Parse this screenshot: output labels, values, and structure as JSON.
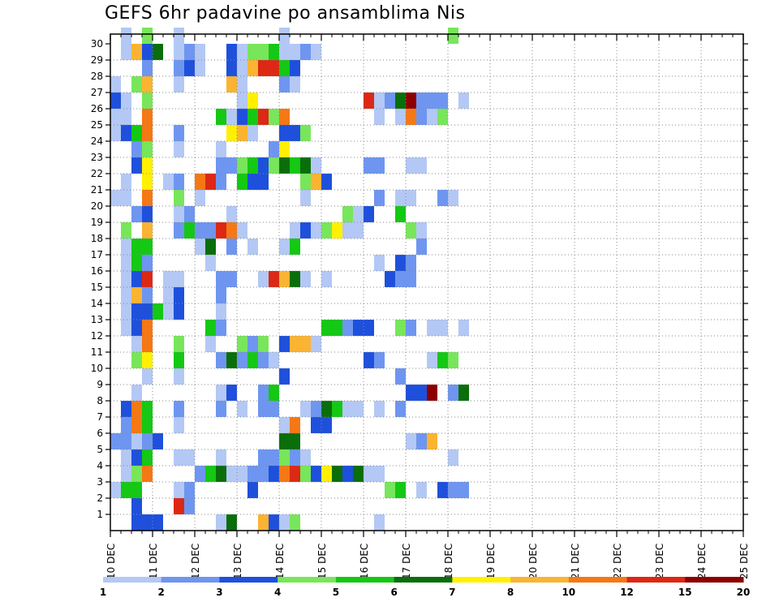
{
  "chart_data": {
    "type": "heatmap",
    "title": "GEFS 6hr padavine po ansamblima Nis",
    "xlabel": "",
    "ylabel": "",
    "x_tick_labels": [
      "10 DEC",
      "11 DEC",
      "12 DEC",
      "13 DEC",
      "14 DEC",
      "15 DEC",
      "16 DEC",
      "17 DEC",
      "18 DEC",
      "19 DEC",
      "20 DEC",
      "21 DEC",
      "22 DEC",
      "23 DEC",
      "24 DEC",
      "25 DEC"
    ],
    "y_tick_labels": [
      "1",
      "2",
      "3",
      "4",
      "5",
      "6",
      "7",
      "8",
      "9",
      "10",
      "11",
      "12",
      "13",
      "14",
      "15",
      "16",
      "17",
      "18",
      "19",
      "20",
      "21",
      "22",
      "23",
      "24",
      "25",
      "26",
      "27",
      "28",
      "29",
      "30"
    ],
    "xlim": [
      0,
      60
    ],
    "ylim": [
      0,
      30
    ],
    "grid": true,
    "time_step_hours": 6,
    "colorbar": {
      "labels": [
        "1",
        "2",
        "3",
        "4",
        "5",
        "6",
        "7",
        "8",
        "10",
        "12",
        "15",
        "20"
      ],
      "colors": [
        "#b4c8f5",
        "#6e96f0",
        "#1e50dc",
        "#78e65a",
        "#14c814",
        "#0a6e0a",
        "#fff000",
        "#fab432",
        "#f57814",
        "#dc2814",
        "#8c0000"
      ]
    },
    "cells": [
      [
        1,
        30,
        0
      ],
      [
        3,
        30,
        3
      ],
      [
        6,
        30,
        0
      ],
      [
        16,
        30,
        0
      ],
      [
        32,
        30,
        3
      ],
      [
        1,
        29,
        0
      ],
      [
        2,
        29,
        7
      ],
      [
        3,
        29,
        2
      ],
      [
        4,
        29,
        5
      ],
      [
        6,
        29,
        0
      ],
      [
        7,
        29,
        1
      ],
      [
        8,
        29,
        0
      ],
      [
        11,
        29,
        2
      ],
      [
        12,
        29,
        0
      ],
      [
        13,
        29,
        3
      ],
      [
        14,
        29,
        3
      ],
      [
        15,
        29,
        3
      ],
      [
        15,
        29,
        4
      ],
      [
        16,
        29,
        0
      ],
      [
        17,
        29,
        0
      ],
      [
        18,
        29,
        1
      ],
      [
        19,
        29,
        0
      ],
      [
        3,
        28,
        1
      ],
      [
        6,
        28,
        1
      ],
      [
        7,
        28,
        2
      ],
      [
        8,
        28,
        0
      ],
      [
        11,
        28,
        2
      ],
      [
        12,
        28,
        0
      ],
      [
        13,
        28,
        7
      ],
      [
        14,
        28,
        9
      ],
      [
        15,
        28,
        9
      ],
      [
        16,
        28,
        4
      ],
      [
        17,
        28,
        2
      ],
      [
        0,
        27,
        0
      ],
      [
        2,
        27,
        3
      ],
      [
        3,
        27,
        7
      ],
      [
        6,
        27,
        0
      ],
      [
        11,
        27,
        7
      ],
      [
        12,
        27,
        0
      ],
      [
        16,
        27,
        1
      ],
      [
        17,
        27,
        0
      ],
      [
        0,
        26,
        2
      ],
      [
        1,
        26,
        0
      ],
      [
        3,
        26,
        3
      ],
      [
        12,
        26,
        0
      ],
      [
        13,
        26,
        6
      ],
      [
        24,
        26,
        9
      ],
      [
        25,
        26,
        0
      ],
      [
        26,
        26,
        1
      ],
      [
        27,
        26,
        5
      ],
      [
        28,
        26,
        10
      ],
      [
        29,
        26,
        1
      ],
      [
        30,
        26,
        1
      ],
      [
        31,
        26,
        1
      ],
      [
        33,
        26,
        0
      ],
      [
        0,
        25,
        0
      ],
      [
        1,
        25,
        0
      ],
      [
        3,
        25,
        8
      ],
      [
        10,
        25,
        4
      ],
      [
        11,
        25,
        0
      ],
      [
        12,
        25,
        2
      ],
      [
        13,
        25,
        4
      ],
      [
        14,
        25,
        9
      ],
      [
        15,
        25,
        3
      ],
      [
        16,
        25,
        8
      ],
      [
        25,
        25,
        0
      ],
      [
        27,
        25,
        0
      ],
      [
        28,
        25,
        8
      ],
      [
        29,
        25,
        1
      ],
      [
        30,
        25,
        0
      ],
      [
        31,
        25,
        3
      ],
      [
        0,
        24,
        0
      ],
      [
        1,
        24,
        2
      ],
      [
        2,
        24,
        4
      ],
      [
        3,
        24,
        8
      ],
      [
        6,
        24,
        1
      ],
      [
        11,
        24,
        6
      ],
      [
        12,
        24,
        7
      ],
      [
        13,
        24,
        0
      ],
      [
        16,
        24,
        2
      ],
      [
        17,
        24,
        2
      ],
      [
        18,
        24,
        3
      ],
      [
        2,
        23,
        1
      ],
      [
        3,
        23,
        3
      ],
      [
        6,
        23,
        0
      ],
      [
        10,
        23,
        0
      ],
      [
        15,
        23,
        1
      ],
      [
        16,
        23,
        6
      ],
      [
        2,
        22,
        2
      ],
      [
        3,
        22,
        6
      ],
      [
        10,
        22,
        1
      ],
      [
        11,
        22,
        1
      ],
      [
        12,
        22,
        3
      ],
      [
        13,
        22,
        4
      ],
      [
        14,
        22,
        2
      ],
      [
        15,
        22,
        3
      ],
      [
        16,
        22,
        5
      ],
      [
        17,
        22,
        4
      ],
      [
        18,
        22,
        5
      ],
      [
        19,
        22,
        0
      ],
      [
        24,
        22,
        1
      ],
      [
        25,
        22,
        1
      ],
      [
        28,
        22,
        0
      ],
      [
        29,
        22,
        0
      ],
      [
        1,
        21,
        0
      ],
      [
        3,
        21,
        6
      ],
      [
        5,
        21,
        0
      ],
      [
        6,
        21,
        1
      ],
      [
        8,
        21,
        8
      ],
      [
        9,
        21,
        9
      ],
      [
        10,
        21,
        1
      ],
      [
        12,
        21,
        4
      ],
      [
        13,
        21,
        2
      ],
      [
        14,
        21,
        2
      ],
      [
        18,
        21,
        3
      ],
      [
        19,
        21,
        7
      ],
      [
        20,
        21,
        2
      ],
      [
        0,
        20,
        0
      ],
      [
        1,
        20,
        0
      ],
      [
        3,
        20,
        8
      ],
      [
        6,
        20,
        3
      ],
      [
        8,
        20,
        0
      ],
      [
        18,
        20,
        0
      ],
      [
        25,
        20,
        1
      ],
      [
        27,
        20,
        0
      ],
      [
        28,
        20,
        0
      ],
      [
        31,
        20,
        1
      ],
      [
        32,
        20,
        0
      ],
      [
        2,
        19,
        1
      ],
      [
        3,
        19,
        2
      ],
      [
        6,
        19,
        0
      ],
      [
        7,
        19,
        1
      ],
      [
        11,
        19,
        0
      ],
      [
        22,
        19,
        3
      ],
      [
        23,
        19,
        0
      ],
      [
        24,
        19,
        2
      ],
      [
        27,
        19,
        4
      ],
      [
        1,
        18,
        3
      ],
      [
        3,
        18,
        7
      ],
      [
        6,
        18,
        1
      ],
      [
        7,
        18,
        4
      ],
      [
        8,
        18,
        1
      ],
      [
        9,
        18,
        1
      ],
      [
        10,
        18,
        9
      ],
      [
        11,
        18,
        8
      ],
      [
        12,
        18,
        0
      ],
      [
        17,
        18,
        0
      ],
      [
        18,
        18,
        2
      ],
      [
        19,
        18,
        0
      ],
      [
        20,
        18,
        3
      ],
      [
        21,
        18,
        6
      ],
      [
        22,
        18,
        0
      ],
      [
        23,
        18,
        0
      ],
      [
        28,
        18,
        3
      ],
      [
        29,
        18,
        0
      ],
      [
        1,
        17,
        0
      ],
      [
        2,
        17,
        4
      ],
      [
        3,
        17,
        4
      ],
      [
        8,
        17,
        0
      ],
      [
        9,
        17,
        5
      ],
      [
        11,
        17,
        1
      ],
      [
        13,
        17,
        0
      ],
      [
        16,
        17,
        0
      ],
      [
        17,
        17,
        4
      ],
      [
        29,
        17,
        1
      ],
      [
        1,
        16,
        0
      ],
      [
        2,
        16,
        4
      ],
      [
        3,
        16,
        1
      ],
      [
        9,
        16,
        0
      ],
      [
        25,
        16,
        0
      ],
      [
        27,
        16,
        2
      ],
      [
        28,
        16,
        1
      ],
      [
        1,
        15,
        0
      ],
      [
        2,
        15,
        2
      ],
      [
        3,
        15,
        9
      ],
      [
        5,
        15,
        0
      ],
      [
        6,
        15,
        0
      ],
      [
        10,
        15,
        1
      ],
      [
        11,
        15,
        1
      ],
      [
        14,
        15,
        0
      ],
      [
        15,
        15,
        9
      ],
      [
        16,
        15,
        7
      ],
      [
        17,
        15,
        5
      ],
      [
        18,
        15,
        0
      ],
      [
        20,
        15,
        0
      ],
      [
        26,
        15,
        2
      ],
      [
        27,
        15,
        1
      ],
      [
        28,
        15,
        1
      ],
      [
        1,
        14,
        0
      ],
      [
        2,
        14,
        7
      ],
      [
        3,
        14,
        1
      ],
      [
        5,
        14,
        0
      ],
      [
        6,
        14,
        2
      ],
      [
        10,
        14,
        1
      ],
      [
        1,
        13,
        0
      ],
      [
        2,
        13,
        2
      ],
      [
        3,
        13,
        2
      ],
      [
        4,
        13,
        4
      ],
      [
        5,
        13,
        0
      ],
      [
        6,
        13,
        2
      ],
      [
        10,
        13,
        0
      ],
      [
        1,
        12,
        0
      ],
      [
        2,
        12,
        2
      ],
      [
        3,
        12,
        8
      ],
      [
        9,
        12,
        4
      ],
      [
        10,
        12,
        1
      ],
      [
        20,
        12,
        4
      ],
      [
        21,
        12,
        4
      ],
      [
        22,
        12,
        1
      ],
      [
        23,
        12,
        2
      ],
      [
        24,
        12,
        2
      ],
      [
        27,
        12,
        3
      ],
      [
        28,
        12,
        1
      ],
      [
        30,
        12,
        0
      ],
      [
        31,
        12,
        0
      ],
      [
        33,
        12,
        0
      ],
      [
        2,
        11,
        0
      ],
      [
        3,
        11,
        8
      ],
      [
        6,
        11,
        3
      ],
      [
        9,
        11,
        0
      ],
      [
        12,
        11,
        3
      ],
      [
        13,
        11,
        1
      ],
      [
        14,
        11,
        3
      ],
      [
        16,
        11,
        2
      ],
      [
        17,
        11,
        7
      ],
      [
        18,
        11,
        7
      ],
      [
        19,
        11,
        0
      ],
      [
        2,
        10,
        3
      ],
      [
        3,
        10,
        6
      ],
      [
        6,
        10,
        4
      ],
      [
        10,
        10,
        1
      ],
      [
        11,
        10,
        5
      ],
      [
        12,
        10,
        1
      ],
      [
        13,
        10,
        4
      ],
      [
        14,
        10,
        1
      ],
      [
        15,
        10,
        0
      ],
      [
        24,
        10,
        2
      ],
      [
        25,
        10,
        1
      ],
      [
        30,
        10,
        0
      ],
      [
        31,
        10,
        4
      ],
      [
        32,
        10,
        3
      ],
      [
        3,
        9,
        0
      ],
      [
        6,
        9,
        0
      ],
      [
        16,
        9,
        2
      ],
      [
        27,
        9,
        1
      ],
      [
        2,
        8,
        0
      ],
      [
        10,
        8,
        0
      ],
      [
        11,
        8,
        2
      ],
      [
        14,
        8,
        1
      ],
      [
        15,
        8,
        4
      ],
      [
        28,
        8,
        2
      ],
      [
        29,
        8,
        2
      ],
      [
        30,
        8,
        10
      ],
      [
        32,
        8,
        1
      ],
      [
        33,
        8,
        5
      ],
      [
        1,
        7,
        2
      ],
      [
        2,
        7,
        8
      ],
      [
        3,
        7,
        4
      ],
      [
        6,
        7,
        1
      ],
      [
        10,
        7,
        1
      ],
      [
        12,
        7,
        0
      ],
      [
        14,
        7,
        1
      ],
      [
        15,
        7,
        1
      ],
      [
        18,
        7,
        0
      ],
      [
        19,
        7,
        1
      ],
      [
        20,
        7,
        5
      ],
      [
        21,
        7,
        4
      ],
      [
        22,
        7,
        0
      ],
      [
        23,
        7,
        0
      ],
      [
        25,
        7,
        0
      ],
      [
        27,
        7,
        1
      ],
      [
        1,
        6,
        1
      ],
      [
        2,
        6,
        8
      ],
      [
        3,
        6,
        4
      ],
      [
        6,
        6,
        0
      ],
      [
        16,
        6,
        0
      ],
      [
        17,
        6,
        8
      ],
      [
        19,
        6,
        2
      ],
      [
        20,
        6,
        2
      ],
      [
        0,
        5,
        1
      ],
      [
        1,
        5,
        1
      ],
      [
        2,
        5,
        0
      ],
      [
        3,
        5,
        1
      ],
      [
        4,
        5,
        2
      ],
      [
        16,
        5,
        5
      ],
      [
        17,
        5,
        5
      ],
      [
        28,
        5,
        0
      ],
      [
        29,
        5,
        1
      ],
      [
        30,
        5,
        7
      ],
      [
        1,
        4,
        0
      ],
      [
        2,
        4,
        2
      ],
      [
        3,
        4,
        4
      ],
      [
        6,
        4,
        0
      ],
      [
        7,
        4,
        0
      ],
      [
        10,
        4,
        0
      ],
      [
        14,
        4,
        1
      ],
      [
        15,
        4,
        1
      ],
      [
        16,
        4,
        3
      ],
      [
        17,
        4,
        1
      ],
      [
        18,
        4,
        0
      ],
      [
        32,
        4,
        0
      ],
      [
        1,
        3,
        0
      ],
      [
        2,
        3,
        3
      ],
      [
        3,
        3,
        8
      ],
      [
        8,
        3,
        1
      ],
      [
        9,
        3,
        4
      ],
      [
        10,
        3,
        5
      ],
      [
        11,
        3,
        0
      ],
      [
        12,
        3,
        0
      ],
      [
        13,
        3,
        1
      ],
      [
        14,
        3,
        1
      ],
      [
        15,
        3,
        2
      ],
      [
        16,
        3,
        8
      ],
      [
        17,
        3,
        9
      ],
      [
        18,
        3,
        3
      ],
      [
        19,
        3,
        2
      ],
      [
        20,
        3,
        6
      ],
      [
        21,
        3,
        5
      ],
      [
        22,
        3,
        2
      ],
      [
        23,
        3,
        5
      ],
      [
        24,
        3,
        0
      ],
      [
        25,
        3,
        0
      ],
      [
        0,
        2,
        0
      ],
      [
        1,
        2,
        4
      ],
      [
        2,
        2,
        4
      ],
      [
        6,
        2,
        0
      ],
      [
        7,
        2,
        1
      ],
      [
        13,
        2,
        2
      ],
      [
        26,
        2,
        3
      ],
      [
        27,
        2,
        4
      ],
      [
        29,
        2,
        0
      ],
      [
        31,
        2,
        2
      ],
      [
        32,
        2,
        1
      ],
      [
        33,
        2,
        1
      ],
      [
        2,
        1,
        2
      ],
      [
        6,
        1,
        9
      ],
      [
        7,
        1,
        1
      ],
      [
        2,
        0,
        2
      ],
      [
        3,
        0,
        2
      ],
      [
        4,
        0,
        2
      ],
      [
        10,
        0,
        0
      ],
      [
        11,
        0,
        5
      ],
      [
        14,
        0,
        7
      ],
      [
        15,
        0,
        2
      ],
      [
        16,
        0,
        0
      ],
      [
        17,
        0,
        3
      ],
      [
        25,
        0,
        0
      ]
    ]
  }
}
